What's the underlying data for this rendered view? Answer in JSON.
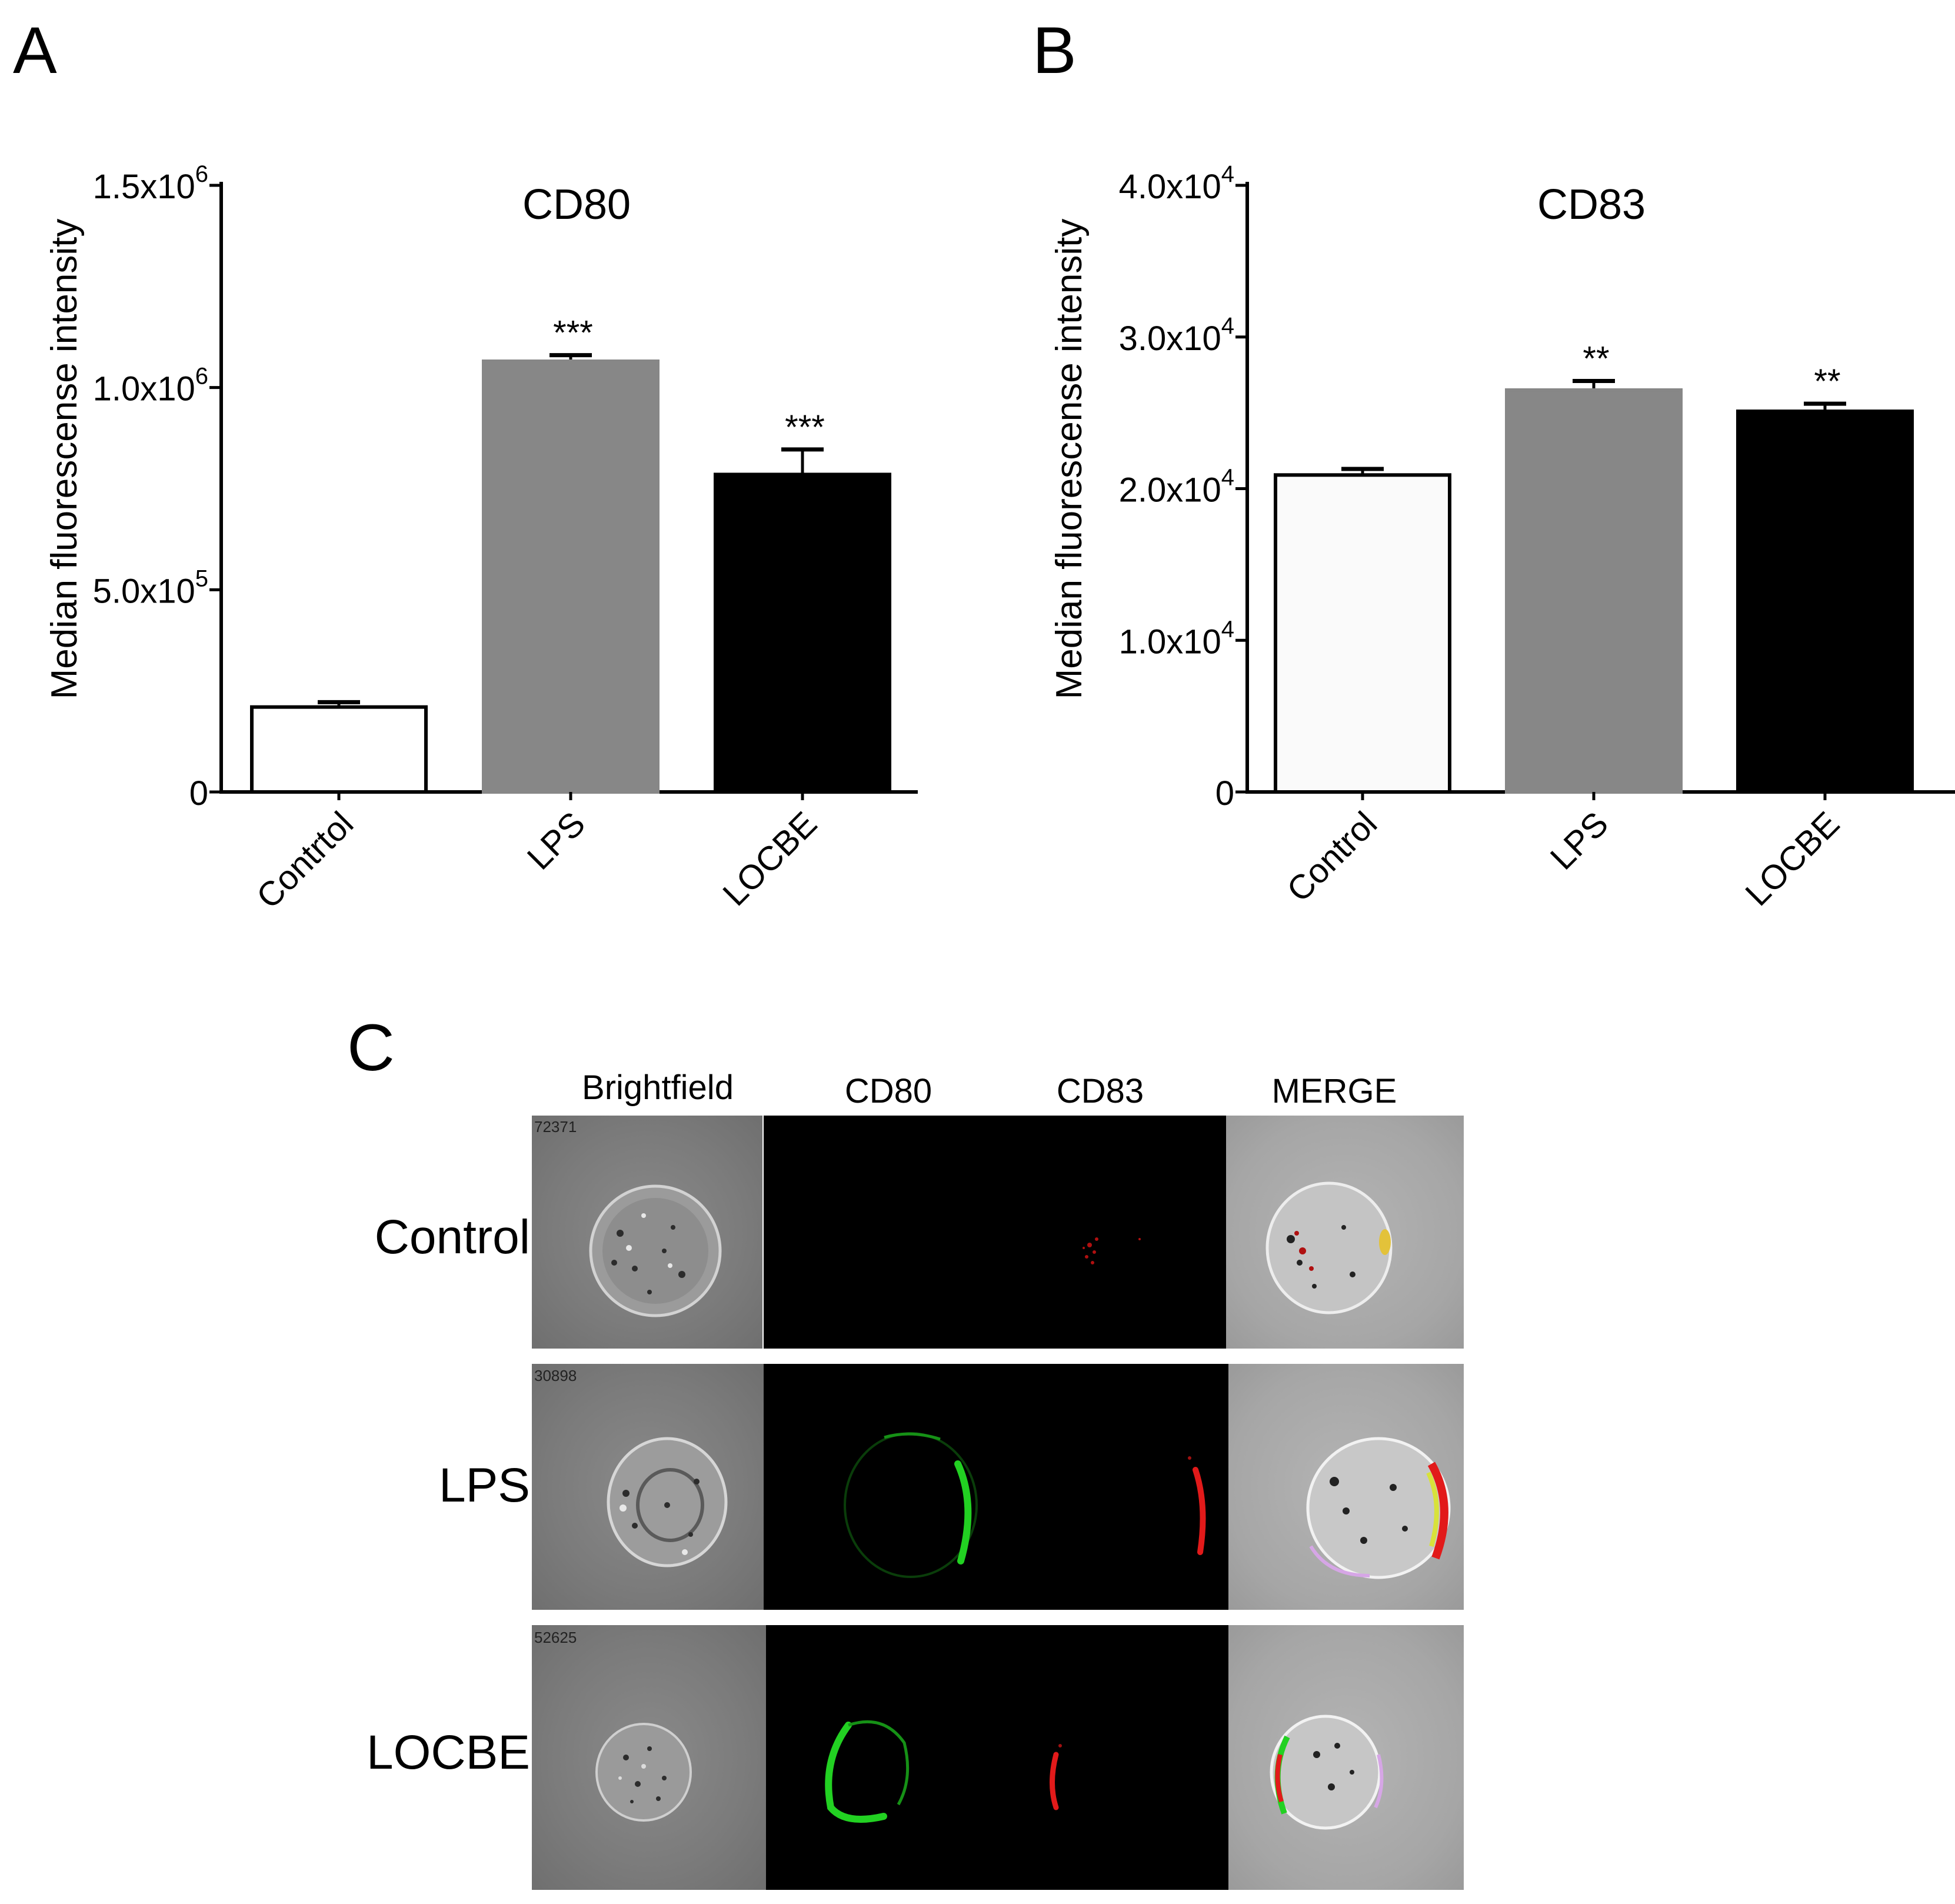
{
  "panels": {
    "a": "A",
    "b": "B",
    "c": "C"
  },
  "chart_data": [
    {
      "type": "bar",
      "panel": "A",
      "title": "CD80",
      "ylabel": "Median fluorescense intensity",
      "categories": [
        "Contrtol",
        "LPS",
        "LOCBE"
      ],
      "values": [
        210000,
        1065000,
        785000
      ],
      "errors": [
        12000,
        15000,
        62000
      ],
      "significance": [
        "",
        "***",
        "***"
      ],
      "colors": [
        "#ffffff",
        "#878787",
        "#000000"
      ],
      "ylim": [
        0,
        1500000
      ],
      "yticks": [
        {
          "value": 0,
          "base": "0",
          "exp": ""
        },
        {
          "value": 500000,
          "base": "5.0x10",
          "exp": "5"
        },
        {
          "value": 1000000,
          "base": "1.0x10",
          "exp": "6"
        },
        {
          "value": 1500000,
          "base": "1.5x10",
          "exp": "6"
        }
      ]
    },
    {
      "type": "bar",
      "panel": "B",
      "title": "CD83",
      "ylabel": "Median fluorescense intensity",
      "categories": [
        "Control",
        "LPS",
        "LOCBE"
      ],
      "values": [
        20900,
        26500,
        25100
      ],
      "errors": [
        400,
        600,
        500
      ],
      "significance": [
        "",
        "**",
        "**"
      ],
      "colors": [
        "#fafafa",
        "#878787",
        "#000000"
      ],
      "ylim": [
        0,
        40000
      ],
      "yticks": [
        {
          "value": 0,
          "base": "0",
          "exp": ""
        },
        {
          "value": 10000,
          "base": "1.0x10",
          "exp": "4"
        },
        {
          "value": 20000,
          "base": "2.0x10",
          "exp": "4"
        },
        {
          "value": 30000,
          "base": "3.0x10",
          "exp": "4"
        },
        {
          "value": 40000,
          "base": "4.0x10",
          "exp": "4"
        }
      ]
    }
  ],
  "micrographs": {
    "columns": [
      "Brightfield",
      "CD80",
      "CD83",
      "MERGE"
    ],
    "rows": [
      {
        "label": "Control",
        "id": "72371"
      },
      {
        "label": "LPS",
        "id": "30898"
      },
      {
        "label": "LOCBE",
        "id": "52625"
      }
    ]
  }
}
